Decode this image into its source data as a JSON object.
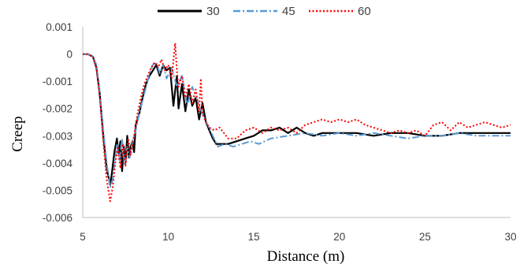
{
  "chart_data": {
    "type": "line",
    "title": "",
    "xlabel": "Distance (m)",
    "ylabel": "Creep",
    "xlim": [
      5,
      30
    ],
    "ylim": [
      -0.006,
      0.001
    ],
    "x_ticks": [
      5,
      10,
      15,
      20,
      25,
      30
    ],
    "x_tick_labels": [
      "5",
      "10",
      "15",
      "20",
      "25",
      "30"
    ],
    "y_ticks": [
      0.001,
      0,
      -0.001,
      -0.002,
      -0.003,
      -0.004,
      -0.005,
      -0.006
    ],
    "y_tick_labels": [
      "0.001",
      "0",
      "-0.001",
      "-0.002",
      "-0.003",
      "-0.004",
      "-0.005",
      "-0.006"
    ],
    "grid": false,
    "legend_position": "top",
    "colors": {
      "30": "#000000",
      "45": "#5b9bd5",
      "60": "#ff0000"
    },
    "series": [
      {
        "name": "30",
        "style": "solid",
        "x": [
          5.0,
          5.3,
          5.6,
          5.8,
          6.0,
          6.2,
          6.4,
          6.6,
          6.7,
          6.85,
          7.0,
          7.1,
          7.2,
          7.3,
          7.4,
          7.5,
          7.6,
          7.7,
          7.8,
          7.9,
          8.0,
          8.1,
          8.3,
          8.5,
          8.7,
          8.9,
          9.1,
          9.3,
          9.5,
          9.7,
          9.9,
          10.1,
          10.3,
          10.5,
          10.6,
          10.8,
          11.0,
          11.2,
          11.4,
          11.6,
          11.8,
          12.0,
          12.2,
          12.4,
          12.6,
          12.8,
          13.0,
          13.5,
          14.0,
          14.5,
          15.0,
          15.5,
          16.0,
          16.5,
          17.0,
          17.5,
          18.0,
          18.5,
          19.0,
          20.0,
          21.0,
          22.0,
          23.0,
          24.0,
          25.0,
          26.0,
          27.0,
          28.0,
          29.0,
          30.0
        ],
        "values": [
          0,
          0,
          -0.0001,
          -0.0005,
          -0.0015,
          -0.003,
          -0.0042,
          -0.0048,
          -0.0044,
          -0.0036,
          -0.0031,
          -0.0037,
          -0.0032,
          -0.0043,
          -0.0034,
          -0.004,
          -0.003,
          -0.0038,
          -0.0034,
          -0.0032,
          -0.0036,
          -0.0026,
          -0.0022,
          -0.0016,
          -0.0011,
          -0.0008,
          -0.0006,
          -0.0004,
          -0.0008,
          -0.0004,
          -0.0006,
          -0.0005,
          -0.0019,
          -0.0008,
          -0.002,
          -0.0011,
          -0.0021,
          -0.0013,
          -0.0019,
          -0.0016,
          -0.0024,
          -0.0018,
          -0.0025,
          -0.0028,
          -0.0031,
          -0.0033,
          -0.0033,
          -0.0033,
          -0.0032,
          -0.0031,
          -0.003,
          -0.0028,
          -0.0028,
          -0.0027,
          -0.0029,
          -0.0027,
          -0.0029,
          -0.003,
          -0.0029,
          -0.0029,
          -0.0029,
          -0.003,
          -0.0029,
          -0.0029,
          -0.003,
          -0.003,
          -0.0029,
          -0.0029,
          -0.0029,
          -0.0029
        ]
      },
      {
        "name": "45",
        "style": "dashdot",
        "x": [
          5.0,
          5.3,
          5.6,
          5.8,
          6.0,
          6.2,
          6.4,
          6.6,
          6.75,
          6.9,
          7.0,
          7.15,
          7.3,
          7.45,
          7.6,
          7.75,
          7.9,
          8.1,
          8.3,
          8.5,
          8.7,
          8.9,
          9.1,
          9.3,
          9.5,
          9.7,
          9.9,
          10.2,
          10.5,
          10.8,
          11.1,
          11.4,
          11.7,
          12.0,
          12.3,
          12.6,
          12.9,
          13.3,
          13.8,
          14.3,
          14.8,
          15.3,
          16.0,
          17.0,
          18.0,
          19.0,
          20.0,
          21.0,
          22.0,
          23.0,
          24.0,
          25.0,
          26.0,
          27.0,
          28.0,
          29.0,
          30.0
        ],
        "values": [
          0,
          0,
          -0.0001,
          -0.0004,
          -0.0014,
          -0.0028,
          -0.004,
          -0.0049,
          -0.0046,
          -0.0038,
          -0.0033,
          -0.0039,
          -0.0031,
          -0.0041,
          -0.0034,
          -0.0038,
          -0.0032,
          -0.0028,
          -0.0022,
          -0.0017,
          -0.0012,
          -0.0007,
          -0.0004,
          -0.0003,
          -0.0007,
          -0.0004,
          -0.0009,
          -0.0005,
          -0.0012,
          -0.0008,
          -0.0019,
          -0.0012,
          -0.0017,
          -0.0022,
          -0.0026,
          -0.003,
          -0.0034,
          -0.0033,
          -0.0034,
          -0.0033,
          -0.0032,
          -0.0033,
          -0.0031,
          -0.003,
          -0.0029,
          -0.003,
          -0.0029,
          -0.003,
          -0.0029,
          -0.003,
          -0.0031,
          -0.003,
          -0.003,
          -0.0029,
          -0.003,
          -0.003,
          -0.003
        ]
      },
      {
        "name": "60",
        "style": "dotted",
        "x": [
          5.0,
          5.3,
          5.6,
          5.8,
          6.0,
          6.2,
          6.4,
          6.6,
          6.75,
          6.9,
          7.05,
          7.2,
          7.35,
          7.5,
          7.65,
          7.8,
          8.0,
          8.2,
          8.4,
          8.6,
          8.8,
          9.0,
          9.2,
          9.4,
          9.6,
          9.8,
          10.0,
          10.2,
          10.4,
          10.5,
          10.6,
          10.8,
          11.0,
          11.2,
          11.4,
          11.6,
          11.8,
          11.9,
          12.0,
          12.2,
          12.4,
          12.7,
          13.0,
          13.5,
          14.0,
          14.5,
          15.0,
          15.5,
          16.0,
          16.5,
          17.0,
          17.5,
          18.0,
          18.5,
          19.0,
          19.5,
          20.0,
          20.5,
          21.0,
          21.5,
          22.0,
          22.5,
          23.0,
          23.5,
          24.0,
          24.5,
          25.0,
          25.5,
          26.0,
          26.5,
          27.0,
          27.5,
          28.0,
          28.5,
          29.0,
          29.5,
          30.0
        ],
        "values": [
          0,
          0,
          -0.0001,
          -0.0005,
          -0.0016,
          -0.0032,
          -0.0046,
          -0.0054,
          -0.0049,
          -0.004,
          -0.0034,
          -0.0042,
          -0.0033,
          -0.0041,
          -0.0031,
          -0.0037,
          -0.003,
          -0.0022,
          -0.0016,
          -0.0011,
          -0.0008,
          -0.0005,
          -0.0003,
          -0.0005,
          -0.0002,
          -0.0006,
          -0.0004,
          -0.0009,
          0.0004,
          -0.0006,
          -0.0012,
          -0.0008,
          -0.0016,
          -0.0011,
          -0.0018,
          -0.0013,
          -0.0021,
          -0.0009,
          -0.0022,
          -0.0025,
          -0.0027,
          -0.0028,
          -0.0027,
          -0.0031,
          -0.0031,
          -0.0028,
          -0.0027,
          -0.0029,
          -0.0027,
          -0.0028,
          -0.0027,
          -0.0029,
          -0.0026,
          -0.0025,
          -0.0024,
          -0.0025,
          -0.0024,
          -0.0025,
          -0.0024,
          -0.0026,
          -0.0027,
          -0.0028,
          -0.0029,
          -0.0028,
          -0.0029,
          -0.0028,
          -0.003,
          -0.0026,
          -0.0025,
          -0.0028,
          -0.0025,
          -0.0027,
          -0.0026,
          -0.0025,
          -0.0026,
          -0.0027,
          -0.0026
        ]
      }
    ]
  }
}
